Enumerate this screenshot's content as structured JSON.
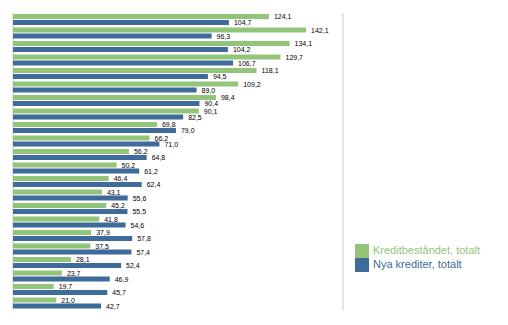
{
  "chart_data": {
    "type": "bar",
    "orientation": "horizontal",
    "categories": [
      null,
      null,
      null,
      null,
      null,
      null,
      null,
      null,
      null,
      null,
      null,
      null,
      null,
      null,
      null,
      null,
      null,
      null,
      null,
      null,
      null,
      null
    ],
    "series": [
      {
        "name": "Kreditbeståndet, totalt",
        "color": "#92c47a",
        "values": [
          124.1,
          142.1,
          134.1,
          129.7,
          118.1,
          109.2,
          98.4,
          90.1,
          69.8,
          66.2,
          56.2,
          50.2,
          46.4,
          43.1,
          45.2,
          41.8,
          37.9,
          37.5,
          28.1,
          23.7,
          19.7,
          21.0
        ],
        "value_labels": [
          "124,1",
          "142,1",
          "134,1",
          "129,7",
          "118,1",
          "109,2",
          "98,4",
          "90,1",
          "69,8",
          "66,2",
          "56,2",
          "50,2",
          "46,4",
          "43,1",
          "45,2",
          "41,8",
          "37,9",
          "37,5",
          "28,1",
          "23,7",
          "19,7",
          "21,0"
        ]
      },
      {
        "name": "Nya krediter, totalt",
        "color": "#3e6b99",
        "values": [
          104.7,
          96.3,
          104.2,
          106.7,
          94.5,
          89.0,
          90.4,
          82.5,
          79.0,
          71.0,
          64.8,
          61.2,
          62.4,
          55.6,
          55.5,
          54.6,
          57.8,
          57.4,
          52.4,
          46.9,
          45.7,
          42.7
        ],
        "value_labels": [
          "104,7",
          "96,3",
          "104,2",
          "106,7",
          "94,5",
          "89,0",
          "90,4",
          "82,5",
          "79,0",
          "71,0",
          "64,8",
          "61,2",
          "62,4",
          "55,6",
          "55,5",
          "54,6",
          "57,8",
          "57,4",
          "52,4",
          "46,9",
          "45,7",
          "42,7"
        ]
      }
    ],
    "xlim": [
      0,
      160
    ],
    "xticks": [
      0,
      40,
      80,
      120,
      160
    ],
    "grid": true,
    "legend": "lower right",
    "data_labels": true,
    "tick_labels": false
  }
}
